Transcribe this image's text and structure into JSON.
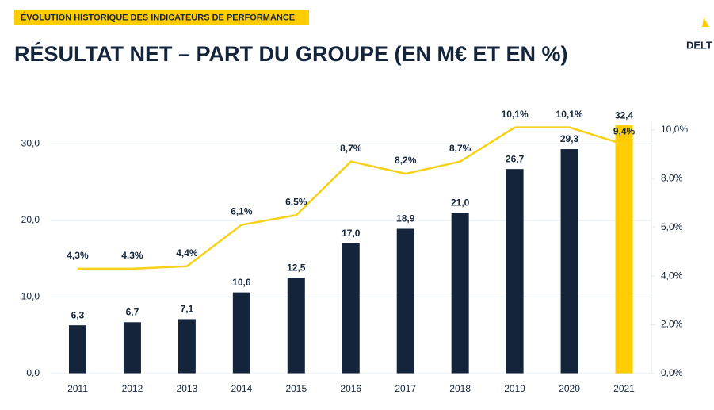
{
  "header": {
    "tag": "ÉVOLUTION HISTORIQUE DES INDICATEURS DE PERFORMANCE",
    "title": "RÉSULTAT NET – PART DU GROUPE (EN M€ ET EN %)",
    "logo": "DELT"
  },
  "chart_data": {
    "type": "bar-line",
    "categories": [
      "2011",
      "2012",
      "2013",
      "2014",
      "2015",
      "2016",
      "2017",
      "2018",
      "2019",
      "2020",
      "2021"
    ],
    "series": [
      {
        "type": "bar",
        "colors": [
          "#14253b",
          "#14253b",
          "#14253b",
          "#14253b",
          "#14253b",
          "#14253b",
          "#14253b",
          "#14253b",
          "#14253b",
          "#14253b",
          "#ffcc00"
        ],
        "values": [
          6.3,
          6.7,
          7.1,
          10.6,
          12.5,
          17.0,
          18.9,
          21.0,
          26.7,
          29.3,
          32.4
        ],
        "value_labels": [
          "6,3",
          "6,7",
          "7,1",
          "10,6",
          "12,5",
          "17,0",
          "18,9",
          "21,0",
          "26,7",
          "29,3",
          "32,4"
        ]
      },
      {
        "type": "line",
        "axis": "y2",
        "color": "#f7d117",
        "values": [
          4.3,
          4.3,
          4.4,
          6.1,
          6.5,
          8.7,
          8.2,
          8.7,
          10.1,
          10.1,
          9.4
        ],
        "value_labels": [
          "4,3%",
          "4,3%",
          "4,4%",
          "6,1%",
          "6,5%",
          "8,7%",
          "8,2%",
          "8,7%",
          "10,1%",
          "10,1%",
          "9,4%"
        ]
      }
    ],
    "ylim": [
      0,
      35
    ],
    "yticks": [
      {
        "value": 0,
        "label": "0,0"
      },
      {
        "value": 10,
        "label": "10,0"
      },
      {
        "value": 20,
        "label": "20,0"
      },
      {
        "value": 30,
        "label": "30,0"
      }
    ],
    "y2lim": [
      0,
      11
    ],
    "y2ticks": [
      {
        "value": 0,
        "label": "0,0%"
      },
      {
        "value": 2,
        "label": "2,0%"
      },
      {
        "value": 4,
        "label": "4,0%"
      },
      {
        "value": 6,
        "label": "6,0%"
      },
      {
        "value": 8,
        "label": "8,0%"
      },
      {
        "value": 10,
        "label": "10,0%"
      }
    ],
    "grid": true
  }
}
